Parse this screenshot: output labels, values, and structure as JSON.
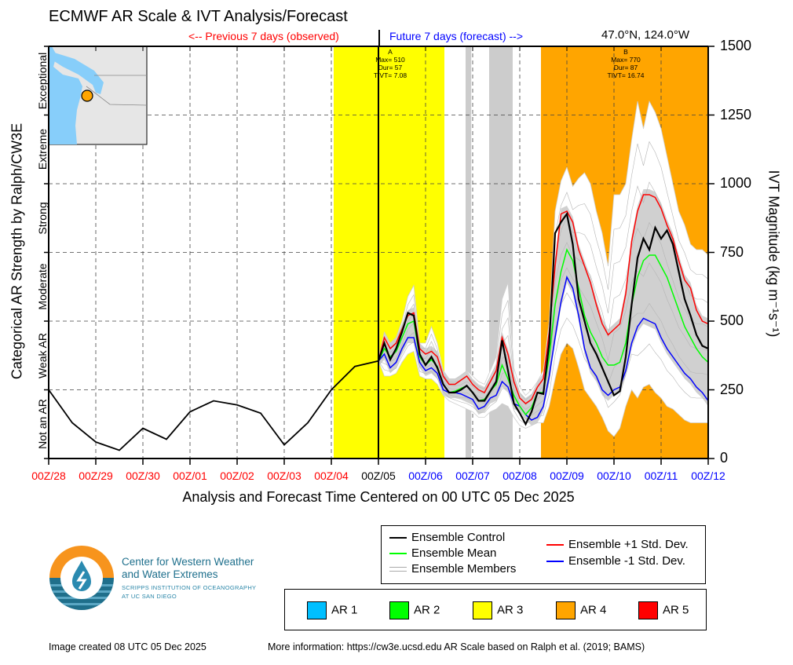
{
  "header": {
    "title": "ECMWF AR Scale & IVT Analysis/Forecast",
    "previous_label": "<-- Previous 7 days (observed)",
    "future_label": "Future 7 days (forecast) -->",
    "location": "47.0°N, 124.0°W"
  },
  "chart_data": {
    "type": "line",
    "title": "ECMWF AR Scale & IVT Analysis/Forecast",
    "xlabel": "Analysis and Forecast Time Centered on 00 UTC 05 Dec 2025",
    "ylabel_left": "Categorical AR Strength by Ralph/CW3E",
    "ylabel_right": "IVT Magnitude (kg m⁻¹s⁻¹)",
    "ylim": [
      0,
      1500
    ],
    "xlim_days": [
      0,
      14
    ],
    "grid": true,
    "x_ticks": [
      {
        "label": "00Z/28",
        "day": 0,
        "color": "#ff0000"
      },
      {
        "label": "00Z/29",
        "day": 1,
        "color": "#ff0000"
      },
      {
        "label": "00Z/30",
        "day": 2,
        "color": "#ff0000"
      },
      {
        "label": "00Z/01",
        "day": 3,
        "color": "#ff0000"
      },
      {
        "label": "00Z/02",
        "day": 4,
        "color": "#ff0000"
      },
      {
        "label": "00Z/03",
        "day": 5,
        "color": "#ff0000"
      },
      {
        "label": "00Z/04",
        "day": 6,
        "color": "#ff0000"
      },
      {
        "label": "00Z/05",
        "day": 7,
        "color": "#000000"
      },
      {
        "label": "00Z/06",
        "day": 8,
        "color": "#0000ff"
      },
      {
        "label": "00Z/07",
        "day": 9,
        "color": "#0000ff"
      },
      {
        "label": "00Z/08",
        "day": 10,
        "color": "#0000ff"
      },
      {
        "label": "00Z/09",
        "day": 11,
        "color": "#0000ff"
      },
      {
        "label": "00Z/10",
        "day": 12,
        "color": "#0000ff"
      },
      {
        "label": "00Z/11",
        "day": 13,
        "color": "#0000ff"
      },
      {
        "label": "00Z/12",
        "day": 14,
        "color": "#0000ff"
      }
    ],
    "y_ticks": [
      0,
      250,
      500,
      750,
      1000,
      1250,
      1500
    ],
    "categories": [
      {
        "label": "Not an AR",
        "range": [
          0,
          250
        ]
      },
      {
        "label": "Weak AR",
        "range": [
          250,
          500
        ]
      },
      {
        "label": "Moderate",
        "range": [
          500,
          750
        ]
      },
      {
        "label": "Strong",
        "range": [
          750,
          1000
        ]
      },
      {
        "label": "Extreme",
        "range": [
          1000,
          1250
        ]
      },
      {
        "label": "Exceptional",
        "range": [
          1250,
          1500
        ]
      }
    ],
    "now_day": 7,
    "shaded_periods": [
      {
        "start_day": 6.05,
        "end_day": 8.4,
        "color": "#ffff00",
        "category": "AR 3"
      },
      {
        "start_day": 8.85,
        "end_day": 8.97,
        "color": "#cccccc",
        "category": "uncertain"
      },
      {
        "start_day": 9.35,
        "end_day": 9.85,
        "color": "#cccccc",
        "category": "uncertain"
      },
      {
        "start_day": 10.45,
        "end_day": 14,
        "color": "#ffa500",
        "category": "AR 4"
      }
    ],
    "events": [
      {
        "id": "A",
        "max": 510,
        "dur": 57,
        "tivt": 7.08,
        "day": 7.25
      },
      {
        "id": "B",
        "max": 770,
        "dur": 87,
        "tivt": 16.74,
        "day": 12.25
      }
    ],
    "analysis_series": {
      "name": "Ensemble Control (analysis)",
      "days": [
        0,
        0.5,
        1,
        1.5,
        2,
        2.5,
        3,
        3.5,
        4,
        4.5,
        5,
        5.5,
        6,
        6.5,
        7
      ],
      "values": [
        250,
        130,
        60,
        30,
        110,
        70,
        170,
        210,
        195,
        165,
        50,
        130,
        250,
        335,
        355
      ]
    },
    "forecast_days": [
      7,
      7.125,
      7.25,
      7.375,
      7.5,
      7.625,
      7.75,
      7.875,
      8,
      8.125,
      8.25,
      8.375,
      8.5,
      8.625,
      8.75,
      8.875,
      9,
      9.125,
      9.25,
      9.375,
      9.5,
      9.625,
      9.75,
      9.875,
      10,
      10.125,
      10.25,
      10.375,
      10.5,
      10.625,
      10.75,
      10.875,
      11,
      11.125,
      11.25,
      11.375,
      11.5,
      11.625,
      11.75,
      11.875,
      12,
      12.125,
      12.25,
      12.375,
      12.5,
      12.625,
      12.75,
      12.875,
      13,
      13.125,
      13.25,
      13.375,
      13.5,
      13.625,
      13.75,
      13.875,
      14
    ],
    "series": [
      {
        "name": "Ensemble Control",
        "color": "#000000",
        "values": [
          355,
          420,
          360,
          400,
          460,
          530,
          520,
          380,
          340,
          370,
          330,
          270,
          240,
          240,
          250,
          265,
          240,
          210,
          210,
          245,
          280,
          430,
          320,
          200,
          165,
          125,
          170,
          240,
          235,
          420,
          820,
          860,
          890,
          780,
          580,
          500,
          420,
          380,
          330,
          280,
          230,
          245,
          370,
          560,
          730,
          800,
          760,
          840,
          800,
          830,
          780,
          680,
          580,
          520,
          450,
          410,
          400
        ]
      },
      {
        "name": "Ensemble Mean",
        "color": "#00ff00",
        "values": [
          355,
          400,
          370,
          390,
          440,
          490,
          500,
          370,
          340,
          360,
          335,
          270,
          240,
          245,
          255,
          265,
          240,
          210,
          215,
          245,
          270,
          340,
          290,
          230,
          190,
          160,
          185,
          240,
          240,
          370,
          560,
          680,
          760,
          720,
          620,
          520,
          460,
          420,
          370,
          340,
          340,
          350,
          420,
          560,
          660,
          720,
          740,
          740,
          700,
          660,
          600,
          540,
          480,
          440,
          400,
          370,
          350
        ]
      },
      {
        "name": "Ensemble +1 Std. Dev.",
        "color": "#ff0000",
        "values": [
          355,
          440,
          400,
          420,
          470,
          520,
          530,
          400,
          380,
          390,
          370,
          300,
          270,
          270,
          285,
          300,
          270,
          250,
          240,
          280,
          320,
          440,
          380,
          280,
          220,
          200,
          215,
          260,
          290,
          460,
          700,
          890,
          900,
          860,
          760,
          700,
          640,
          560,
          490,
          450,
          470,
          490,
          600,
          790,
          900,
          960,
          960,
          950,
          910,
          850,
          800,
          720,
          650,
          620,
          540,
          500,
          490
        ]
      },
      {
        "name": "Ensemble -1 Std. Dev.",
        "color": "#0000ff",
        "values": [
          355,
          380,
          330,
          350,
          400,
          440,
          440,
          350,
          320,
          330,
          310,
          250,
          240,
          240,
          235,
          225,
          215,
          180,
          190,
          220,
          230,
          280,
          260,
          200,
          190,
          160,
          140,
          150,
          190,
          300,
          440,
          570,
          660,
          620,
          520,
          400,
          330,
          300,
          250,
          230,
          250,
          260,
          320,
          420,
          480,
          510,
          500,
          490,
          440,
          400,
          370,
          340,
          310,
          290,
          260,
          240,
          210
        ]
      },
      {
        "name": "Ensemble Members (upper envelope)",
        "color": "#cccccc",
        "values": [
          355,
          460,
          420,
          440,
          500,
          590,
          630,
          420,
          420,
          480,
          420,
          320,
          290,
          290,
          300,
          320,
          300,
          280,
          270,
          320,
          370,
          580,
          640,
          330,
          260,
          230,
          250,
          280,
          320,
          500,
          900,
          1010,
          1060,
          990,
          1020,
          1040,
          1000,
          900,
          820,
          700,
          960,
          960,
          1000,
          1160,
          1300,
          1200,
          1300,
          1260,
          1200,
          1100,
          1000,
          900,
          850,
          780,
          760,
          760,
          740
        ]
      },
      {
        "name": "Ensemble Members (lower envelope)",
        "color": "#cccccc",
        "values": [
          355,
          300,
          300,
          310,
          350,
          380,
          390,
          300,
          290,
          290,
          270,
          230,
          210,
          200,
          190,
          180,
          170,
          150,
          150,
          170,
          180,
          200,
          190,
          150,
          120,
          110,
          120,
          130,
          130,
          190,
          290,
          380,
          420,
          400,
          330,
          250,
          220,
          190,
          150,
          100,
          80,
          110,
          190,
          250,
          220,
          260,
          270,
          240,
          220,
          190,
          180,
          160,
          140,
          130,
          130,
          130,
          130
        ]
      }
    ],
    "legend": [
      {
        "label": "Ensemble Control",
        "color": "#000000"
      },
      {
        "label": "Ensemble Mean",
        "color": "#00ff00"
      },
      {
        "label": "Ensemble Members",
        "color": "#aaaaaa"
      },
      {
        "label": "Ensemble +1 Std. Dev.",
        "color": "#ff0000"
      },
      {
        "label": "Ensemble -1 Std. Dev.",
        "color": "#0000ff"
      }
    ],
    "ar_legend": [
      {
        "label": "AR 1",
        "color": "#00bfff"
      },
      {
        "label": "AR 2",
        "color": "#00ff00"
      },
      {
        "label": "AR 3",
        "color": "#ffff00"
      },
      {
        "label": "AR 4",
        "color": "#ffa500"
      },
      {
        "label": "AR 5",
        "color": "#ff0000"
      }
    ]
  },
  "inset_map": {
    "marker_color": "#ffa500",
    "water_color": "#87cefa"
  },
  "logo": {
    "name_line1": "Center for Western Weather",
    "name_line2": "and Water Extremes",
    "sub_line1": "SCRIPPS INSTITUTION OF OCEANOGRAPHY",
    "sub_line2": "AT UC SAN DIEGO"
  },
  "footer": {
    "created": "Image created 08 UTC 05 Dec 2025",
    "more_info": "More information: https://cw3e.ucsd.edu AR Scale based on Ralph et al. (2019; BAMS)"
  }
}
